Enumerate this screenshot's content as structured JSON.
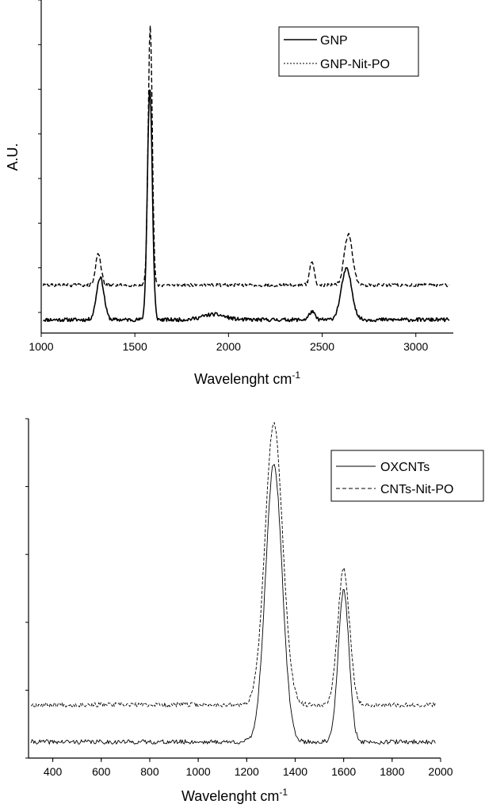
{
  "chart_data": [
    {
      "type": "line",
      "title": "",
      "xlabel": "Wavelenght cm",
      "xlabel_sup": "-1",
      "ylabel": "A.U.",
      "xlim": [
        1000,
        3200
      ],
      "ylim": [
        -0.05,
        1.2
      ],
      "xticks": [
        1000,
        1500,
        2000,
        2500,
        3000
      ],
      "y_tick_labels_shown": false,
      "legend_position": "top-right",
      "series": [
        {
          "name": "GNP",
          "style": "solid",
          "baseline": 0.0,
          "noise": 0.007,
          "peaks": [
            {
              "x": 1315,
              "height": 0.16,
              "width": 20
            },
            {
              "x": 1580,
              "height": 0.87,
              "width": 13
            },
            {
              "x": 1920,
              "height": 0.02,
              "width": 60
            },
            {
              "x": 2445,
              "height": 0.03,
              "width": 15
            },
            {
              "x": 2630,
              "height": 0.19,
              "width": 28
            }
          ]
        },
        {
          "name": "GNP-Nit-PO",
          "style": "dashed",
          "baseline": 0.13,
          "noise": 0.006,
          "peaks": [
            {
              "x": 1305,
              "height": 0.12,
              "width": 14
            },
            {
              "x": 1582,
              "height": 0.97,
              "width": 11
            },
            {
              "x": 2445,
              "height": 0.09,
              "width": 12
            },
            {
              "x": 2640,
              "height": 0.19,
              "width": 22
            }
          ]
        }
      ]
    },
    {
      "type": "line",
      "title": "",
      "xlabel": "Wavelenght cm",
      "xlabel_sup": "-1",
      "ylabel": "",
      "xlim": [
        300,
        2000
      ],
      "ylim": [
        -0.05,
        1.0
      ],
      "xticks": [
        400,
        600,
        800,
        1000,
        1200,
        1400,
        1600,
        1800,
        2000
      ],
      "y_tick_labels_shown": false,
      "legend_position": "top-right",
      "series": [
        {
          "name": "OXCNTs",
          "style": "solid",
          "baseline": 0.0,
          "noise": 0.007,
          "peaks": [
            {
              "x": 1312,
              "height": 0.86,
              "width": 34
            },
            {
              "x": 1600,
              "height": 0.47,
              "width": 22
            }
          ]
        },
        {
          "name": "CNTs-Nit-PO",
          "style": "dashed",
          "baseline": 0.115,
          "noise": 0.007,
          "peaks": [
            {
              "x": 1312,
              "height": 0.87,
              "width": 36
            },
            {
              "x": 1600,
              "height": 0.42,
              "width": 24
            }
          ]
        }
      ]
    }
  ]
}
